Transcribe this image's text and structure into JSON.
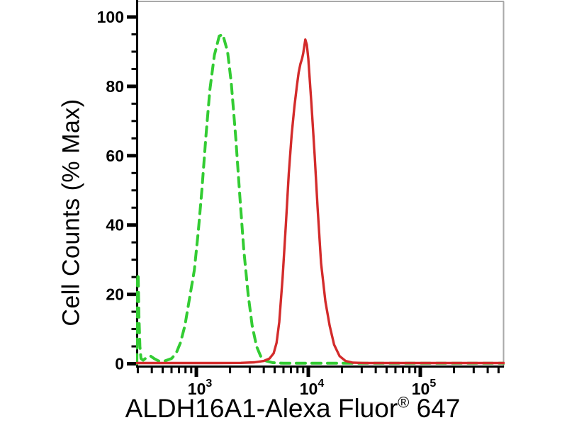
{
  "figure": {
    "background": "#ffffff",
    "border_color": "#a9a9a9",
    "axis_color": "#000000"
  },
  "chart_data": {
    "type": "line",
    "title": "",
    "subtitle": "",
    "xlabel": "ALDH16A1-Alexa Fluor® 647",
    "xlabel_parts": {
      "main": "ALDH16A1-Alexa Fluor",
      "registered_mark": "®",
      "suffix": " 647"
    },
    "ylabel": "Cell Counts (% Max)",
    "x_scale": "log10",
    "x_domain_log10": [
      2.468,
      5.747
    ],
    "ylim": [
      0,
      104
    ],
    "grid": "off",
    "legend": "none",
    "y_major_ticks": [
      0,
      20,
      40,
      60,
      80,
      100
    ],
    "y_minor_tick_step": 5,
    "x_major_ticks": [
      {
        "label_base": "10",
        "label_exponent": "3",
        "value": 1000
      },
      {
        "label_base": "10",
        "label_exponent": "4",
        "value": 10000
      },
      {
        "label_base": "10",
        "label_exponent": "5",
        "value": 100000
      }
    ],
    "x_minor_tick_multipliers": [
      2,
      3,
      4,
      5,
      6,
      7,
      8,
      9
    ],
    "series": [
      {
        "name": "green-dashed-control",
        "style": "dashed",
        "color": "#33cc33",
        "peak_x": 1720,
        "peak_y_percent": 95,
        "points": [
          [
            294,
            0
          ],
          [
            296,
            12
          ],
          [
            298,
            24
          ],
          [
            302,
            26
          ],
          [
            307,
            14
          ],
          [
            313,
            5
          ],
          [
            320,
            1.5
          ],
          [
            335,
            1
          ],
          [
            360,
            1.8
          ],
          [
            390,
            2.2
          ],
          [
            420,
            1.5
          ],
          [
            460,
            0.8
          ],
          [
            520,
            0.8
          ],
          [
            600,
            1.5
          ],
          [
            660,
            3
          ],
          [
            720,
            6
          ],
          [
            790,
            11
          ],
          [
            860,
            18
          ],
          [
            960,
            27
          ],
          [
            1040,
            38
          ],
          [
            1120,
            50
          ],
          [
            1220,
            66
          ],
          [
            1320,
            79
          ],
          [
            1450,
            89
          ],
          [
            1600,
            94.5
          ],
          [
            1720,
            95
          ],
          [
            1900,
            90
          ],
          [
            2050,
            81
          ],
          [
            2250,
            65
          ],
          [
            2450,
            48
          ],
          [
            2650,
            33
          ],
          [
            2900,
            20
          ],
          [
            3150,
            11
          ],
          [
            3450,
            5
          ],
          [
            3750,
            2.2
          ],
          [
            4200,
            0.8
          ],
          [
            4800,
            0.3
          ],
          [
            6000,
            0.15
          ],
          [
            10000,
            0.15
          ],
          [
            20000,
            0.15
          ],
          [
            50000,
            0.15
          ],
          [
            150000,
            0.15
          ],
          [
            400000,
            0.15
          ],
          [
            558000,
            0.15
          ]
        ]
      },
      {
        "name": "red-solid-aldh16a1-stained",
        "style": "solid",
        "color": "#d32b2b",
        "peak_x": 9400,
        "peak_y_percent": 93.5,
        "points": [
          [
            294,
            0.2
          ],
          [
            800,
            0.2
          ],
          [
            1500,
            0.2
          ],
          [
            2500,
            0.25
          ],
          [
            3300,
            0.4
          ],
          [
            4000,
            0.8
          ],
          [
            4500,
            1.5
          ],
          [
            4900,
            3
          ],
          [
            5200,
            6
          ],
          [
            5500,
            12
          ],
          [
            5900,
            25
          ],
          [
            6300,
            40
          ],
          [
            6700,
            55
          ],
          [
            7100,
            66
          ],
          [
            7500,
            74
          ],
          [
            7900,
            80
          ],
          [
            8200,
            84
          ],
          [
            8500,
            86.5
          ],
          [
            8800,
            88
          ],
          [
            9000,
            89.5
          ],
          [
            9400,
            93.5
          ],
          [
            9700,
            92
          ],
          [
            10000,
            88
          ],
          [
            10700,
            74
          ],
          [
            11400,
            60
          ],
          [
            12100,
            45
          ],
          [
            13000,
            29
          ],
          [
            14200,
            18
          ],
          [
            15500,
            11
          ],
          [
            17000,
            5.5
          ],
          [
            19000,
            2.2
          ],
          [
            21500,
            0.8
          ],
          [
            25000,
            0.3
          ],
          [
            32000,
            0.2
          ],
          [
            60000,
            0.2
          ],
          [
            150000,
            0.2
          ],
          [
            400000,
            0.2
          ],
          [
            558000,
            0.2
          ]
        ]
      }
    ]
  }
}
